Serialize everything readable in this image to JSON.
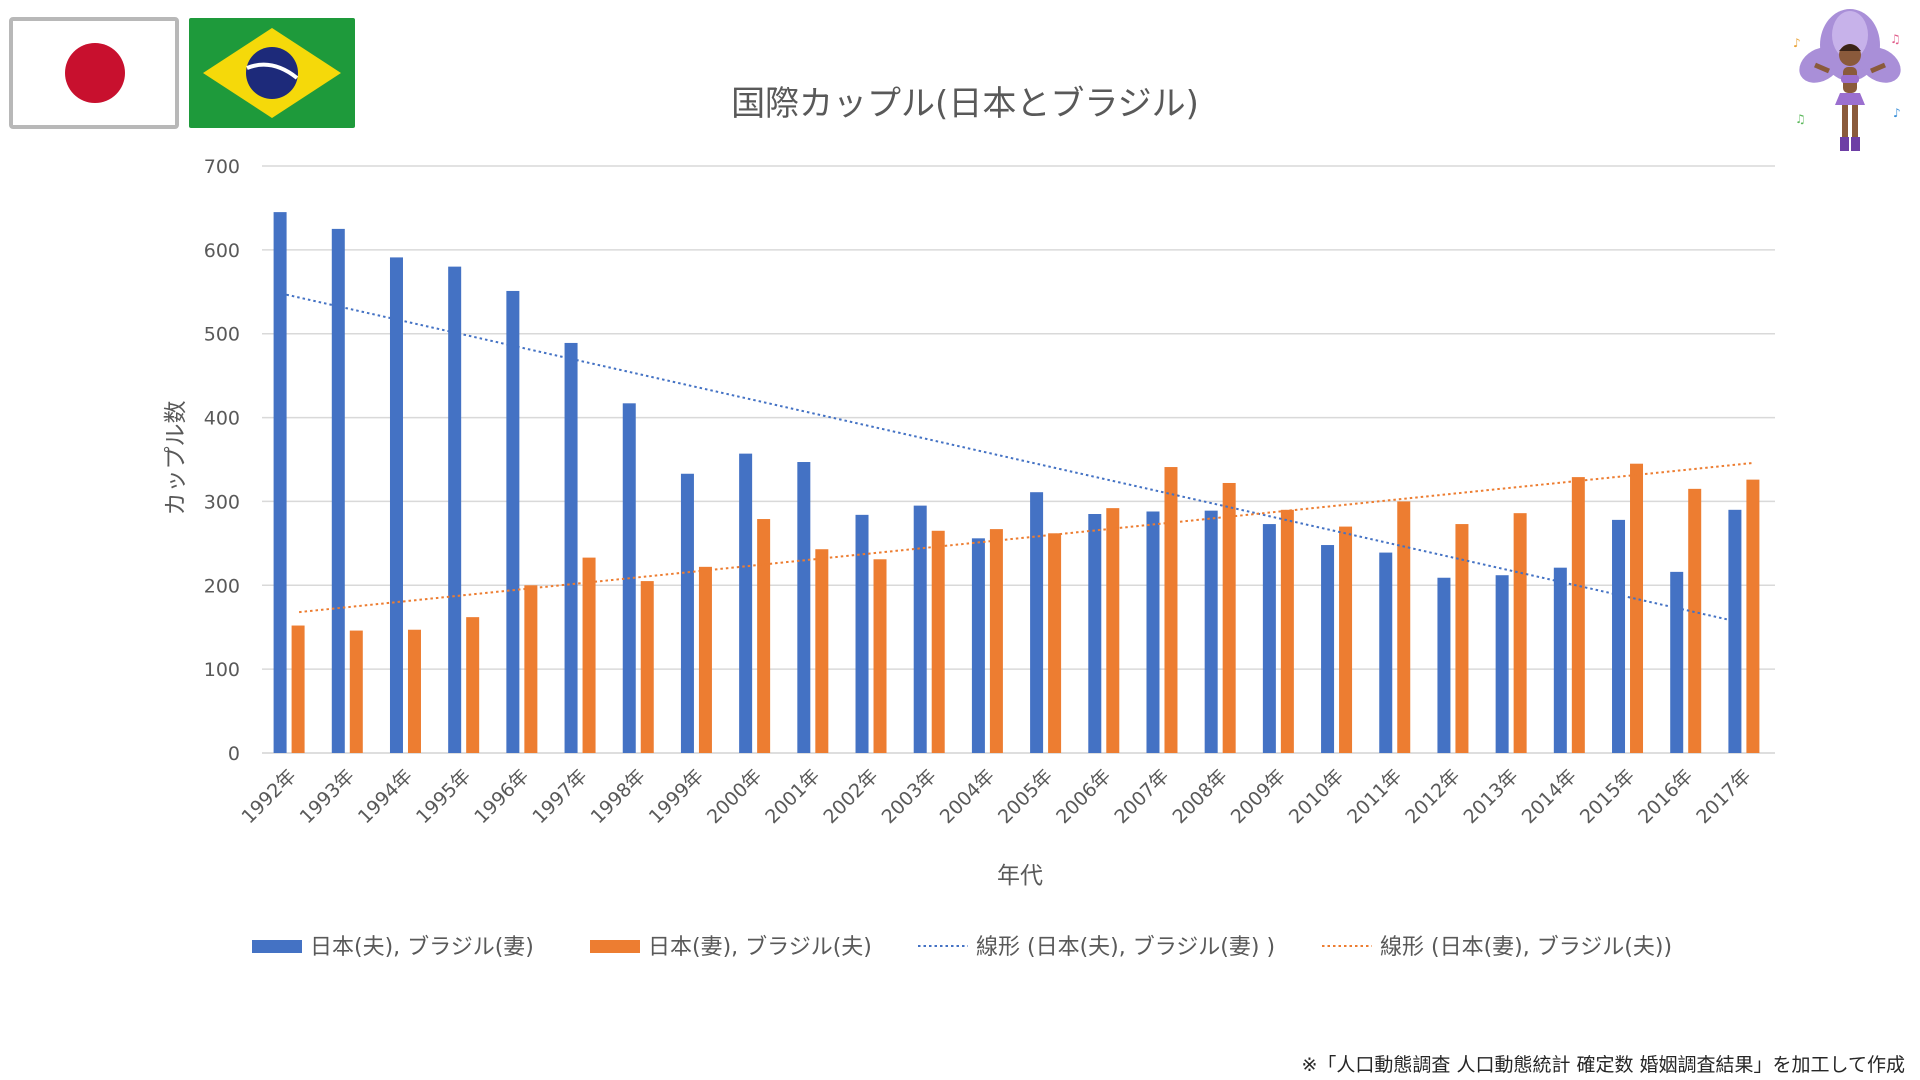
{
  "chart_data": {
    "type": "bar",
    "title": "国際カップル(日本とブラジル)",
    "xlabel": "年代",
    "ylabel": "カップル数",
    "ylim": [
      0,
      700
    ],
    "yticks": [
      "0",
      "100",
      "200",
      "300",
      "400",
      "500",
      "600",
      "700"
    ],
    "grid": true,
    "legend_position": "bottom",
    "categories": [
      "1992年",
      "1993年",
      "1994年",
      "1995年",
      "1996年",
      "1997年",
      "1998年",
      "1999年",
      "2000年",
      "2001年",
      "2002年",
      "2003年",
      "2004年",
      "2005年",
      "2006年",
      "2007年",
      "2008年",
      "2009年",
      "2010年",
      "2011年",
      "2012年",
      "2013年",
      "2014年",
      "2015年",
      "2016年",
      "2017年"
    ],
    "series": [
      {
        "name": "日本(夫), ブラジル(妻)",
        "color": "#4472C4",
        "values": [
          645,
          625,
          591,
          580,
          551,
          489,
          417,
          333,
          357,
          347,
          284,
          295,
          256,
          311,
          285,
          288,
          289,
          273,
          248,
          239,
          209,
          212,
          221,
          278,
          216,
          290
        ]
      },
      {
        "name": "日本(妻), ブラジル(夫)",
        "color": "#ED7D31",
        "values": [
          152,
          146,
          147,
          162,
          200,
          233,
          205,
          222,
          279,
          243,
          231,
          265,
          267,
          262,
          292,
          341,
          322,
          290,
          270,
          300,
          273,
          286,
          329,
          345,
          315,
          326
        ]
      }
    ],
    "trendlines": [
      {
        "name": "線形 (日本(夫), ブラジル(妻) )",
        "color": "#4472C4",
        "start": 548,
        "end": 157
      },
      {
        "name": "線形 (日本(妻), ブラジル(夫))",
        "color": "#ED7D31",
        "start": 168,
        "end": 346
      }
    ]
  },
  "source_note": "※「人口動態調査 人口動態統計 確定数 婚姻調査結果」を加工して作成",
  "illustrations": {
    "flag_japan": "japan-flag-icon",
    "flag_brazil": "brazil-flag-icon",
    "dancer": "samba-dancer-icon"
  }
}
